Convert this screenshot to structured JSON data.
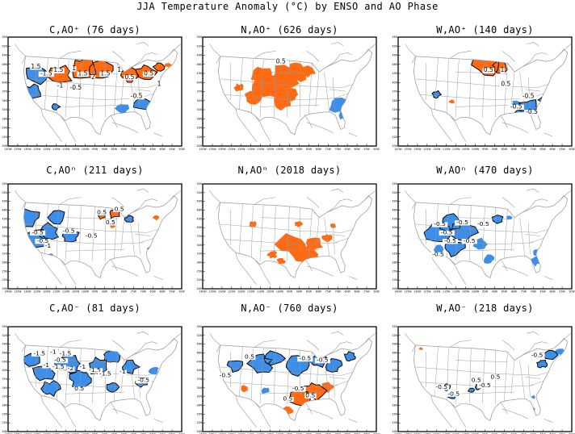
{
  "title": "JJA Temperature Anomaly (°C) by ENSO and AO Phase",
  "colors": {
    "positive": "#ff6a12",
    "negative": "#3d8ee9",
    "contour": "#000000",
    "boundary": "#9a9a9a",
    "frame": "#000000"
  },
  "panels": [
    {
      "title": "C,AO⁺ (76 days)",
      "labels": [
        "1.5",
        "1.5",
        "1",
        "1.5",
        "2",
        "1.5",
        "1",
        "0.5",
        "-1.5",
        "-1",
        "-0.5",
        "-0.5",
        "0.5",
        "1"
      ]
    },
    {
      "title": "N,AO⁺ (626 days)",
      "labels": [
        "0.5"
      ]
    },
    {
      "title": "W,AO⁺ (140 days)",
      "labels": [
        "0.5",
        "1",
        "0.5",
        "-0.5",
        "-0.5",
        "-0.5"
      ]
    },
    {
      "title": "C,AOⁿ (211 days)",
      "labels": [
        "-0.5",
        "0.5",
        "-0.5",
        "-1",
        "-0.5",
        "0.5",
        "-0.5",
        "0.5"
      ]
    },
    {
      "title": "N,AOⁿ (2018 days)",
      "labels": []
    },
    {
      "title": "W,AOⁿ (470 days)",
      "labels": [
        "-0.5",
        "-0.5",
        "-0.5",
        "-0.5",
        "-0.5",
        "-0.5",
        "-0.5"
      ]
    },
    {
      "title": "C,AO⁻ (81 days)",
      "labels": [
        "-1.5",
        "-1",
        "-1.5",
        "-0.5",
        "-1",
        "-1.5",
        "-2",
        "-1",
        "-1.5",
        "-1.5",
        "-1",
        "-0.5",
        "0.5"
      ]
    },
    {
      "title": "N,AO⁻ (760 days)",
      "labels": [
        "0.5",
        "-0.5",
        "-0.5",
        "-0.5",
        "-0.5",
        "0.5",
        "0.5"
      ]
    },
    {
      "title": "W,AO⁻ (218 days)",
      "labels": [
        "-0.5",
        "-0.5",
        "0.5",
        "-0.5",
        "0.5",
        "-0.5"
      ]
    }
  ],
  "x_ticks": [
    "140W",
    "135W",
    "130W",
    "125W",
    "120W",
    "115W",
    "110W",
    "105W",
    "100W",
    "95W",
    "90W",
    "85W",
    "80W",
    "75W",
    "70W",
    "65W",
    "60W",
    "55W",
    "50W"
  ],
  "y_ticks": [
    "55N",
    "52N",
    "49N",
    "46N",
    "43N",
    "40N",
    "37N",
    "34N",
    "31N",
    "28N",
    "25N",
    "22N",
    "20N"
  ]
}
